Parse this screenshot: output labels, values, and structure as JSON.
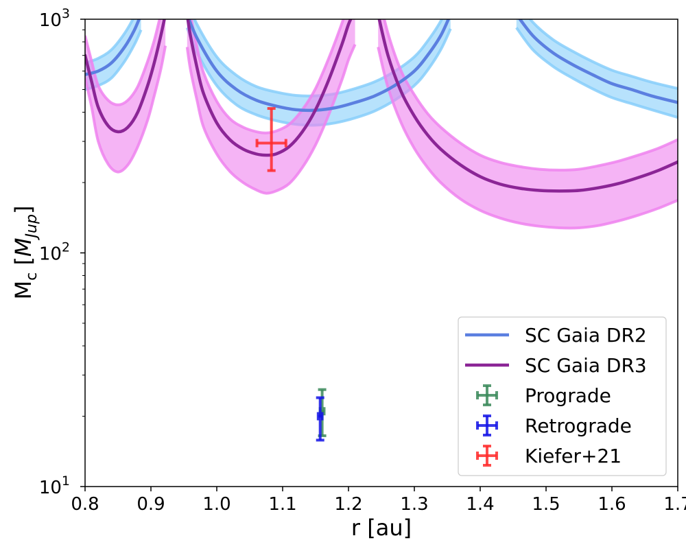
{
  "chart_data": {
    "type": "line",
    "xlabel": "r [au]",
    "ylabel_main": "M",
    "ylabel_sub": "c",
    "ylabel_unit_main": "M",
    "ylabel_unit_sub": "Jup",
    "xlim": [
      0.8,
      1.7
    ],
    "ylim": [
      10,
      1000
    ],
    "yscale": "log",
    "x_ticks": [
      0.8,
      0.9,
      1.0,
      1.1,
      1.2,
      1.3,
      1.4,
      1.5,
      1.6,
      1.7
    ],
    "x_tick_labels": [
      "0.8",
      "0.9",
      "1.0",
      "1.1",
      "1.2",
      "1.3",
      "1.4",
      "1.5",
      "1.6",
      "1.7"
    ],
    "y_major_ticks": [
      {
        "value": 10,
        "base": "10",
        "exp": "1"
      },
      {
        "value": 100,
        "base": "10",
        "exp": "2"
      },
      {
        "value": 1000,
        "base": "10",
        "exp": "3"
      }
    ],
    "legend_position": "bottom-right",
    "series": [
      {
        "name": "SC Gaia DR2",
        "kind": "line-with-band",
        "color": "#5b7fe0",
        "band_color": "#87cefa",
        "band_edge_color": "#87cefa",
        "segments": [
          {
            "x": [
              0.8,
              0.82,
              0.84,
              0.86,
              0.875,
              0.885
            ],
            "y": [
              580,
              600,
              650,
              760,
              900,
              1050
            ],
            "lo": [
              500,
              520,
              560,
              660,
              780,
              900
            ],
            "hi": [
              650,
              680,
              740,
              870,
              1030,
              1200
            ]
          },
          {
            "x": [
              0.955,
              0.97,
              1.0,
              1.03,
              1.06,
              1.09,
              1.12,
              1.15,
              1.18,
              1.21,
              1.24,
              1.27,
              1.3,
              1.32,
              1.34,
              1.355
            ],
            "y": [
              1050,
              830,
              600,
              500,
              450,
              425,
              410,
              408,
              418,
              440,
              470,
              520,
              600,
              700,
              850,
              1050
            ],
            "lo": [
              920,
              720,
              520,
              430,
              390,
              368,
              355,
              352,
              360,
              378,
              405,
              450,
              520,
              605,
              740,
              910
            ],
            "hi": [
              1200,
              950,
              690,
              575,
              515,
              488,
              472,
              470,
              480,
              505,
              540,
              598,
              690,
              805,
              980,
              1210
            ]
          },
          {
            "x": [
              1.455,
              1.48,
              1.51,
              1.54,
              1.57,
              1.6,
              1.63,
              1.66,
              1.7
            ],
            "y": [
              1050,
              850,
              720,
              640,
              580,
              530,
              500,
              470,
              440
            ],
            "lo": [
              920,
              740,
              630,
              560,
              505,
              462,
              435,
              410,
              380
            ],
            "hi": [
              1200,
              970,
              820,
              730,
              660,
              605,
              570,
              538,
              505
            ]
          }
        ]
      },
      {
        "name": "SC Gaia DR3",
        "kind": "line-with-band",
        "color": "#8b2596",
        "band_color": "#ee82ee",
        "band_edge_color": "#ee82ee",
        "segments": [
          {
            "x": [
              0.8,
              0.81,
              0.82,
              0.835,
              0.85,
              0.865,
              0.88,
              0.895,
              0.905,
              0.915,
              0.922
            ],
            "y": [
              700,
              540,
              420,
              350,
              330,
              345,
              400,
              520,
              650,
              850,
              1050
            ],
            "lo": [
              560,
              420,
              300,
              240,
              222,
              238,
              285,
              370,
              470,
              610,
              770
            ],
            "hi": [
              850,
              660,
              520,
              450,
              430,
              450,
              515,
              660,
              810,
              1050,
              1250
            ]
          },
          {
            "x": [
              0.955,
              0.96,
              0.97,
              0.98,
              1.0,
              1.02,
              1.04,
              1.06,
              1.075,
              1.09,
              1.11,
              1.13,
              1.15,
              1.17,
              1.19,
              1.2,
              1.21
            ],
            "y": [
              1050,
              850,
              620,
              480,
              360,
              305,
              278,
              265,
              262,
              265,
              285,
              330,
              410,
              550,
              780,
              950,
              1100
            ],
            "lo": [
              760,
              610,
              450,
              345,
              265,
              223,
              200,
              186,
              180,
              184,
              198,
              232,
              290,
              390,
              550,
              670,
              780
            ],
            "hi": [
              1300,
              1050,
              760,
              590,
              445,
              375,
              345,
              330,
              326,
              332,
              355,
              410,
              505,
              680,
              960,
              1170,
              1350
            ]
          },
          {
            "x": [
              1.245,
              1.26,
              1.28,
              1.3,
              1.32,
              1.34,
              1.37,
              1.4,
              1.43,
              1.46,
              1.49,
              1.52,
              1.55,
              1.58,
              1.61,
              1.64,
              1.67,
              1.7
            ],
            "y": [
              1050,
              700,
              490,
              385,
              320,
              278,
              238,
              212,
              197,
              189,
              185,
              184,
              185,
              190,
              198,
              210,
              225,
              245
            ],
            "lo": [
              760,
              510,
              360,
              280,
              232,
              200,
              170,
              152,
              141,
              134,
              130,
              128,
              128,
              131,
              137,
              145,
              155,
              168
            ],
            "hi": [
              1300,
              870,
              600,
              475,
              395,
              345,
              295,
              262,
              244,
              234,
              228,
              226,
              228,
              236,
              247,
              262,
              280,
              305
            ]
          }
        ]
      },
      {
        "name": "Prograde",
        "kind": "errorbar",
        "color": "#3b8a5a",
        "x": 1.16,
        "y": 21,
        "xerr": 0.003,
        "yerr": [
          16.5,
          26
        ]
      },
      {
        "name": "Retrograde",
        "kind": "errorbar",
        "color": "#1414e6",
        "x": 1.157,
        "y": 20,
        "xerr": 0.003,
        "yerr": [
          15.8,
          24
        ]
      },
      {
        "name": "Kiefer+21",
        "kind": "errorbar",
        "color": "#ff2a2a",
        "x": 1.083,
        "y": 295,
        "xerr": 0.022,
        "yerr": [
          225,
          415
        ]
      }
    ]
  }
}
